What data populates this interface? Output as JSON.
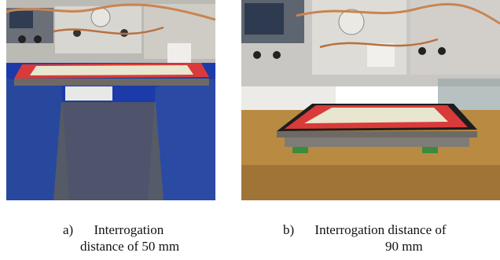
{
  "figure": {
    "panel_a": {
      "number": "a)",
      "caption_line1": "Interrogation",
      "caption_line2": "distance of 50 mm"
    },
    "panel_b": {
      "number": "b)",
      "caption_line1": "Interrogation distance of",
      "caption_line2": "90 mm"
    }
  },
  "colors": {
    "tag_border": "#d93a3a",
    "tag_inner": "#e9e6cf",
    "absorber_blue": "#1c3aa8",
    "bench_wood": "#b88a42",
    "instrument_grey": "#c9c7c3"
  }
}
